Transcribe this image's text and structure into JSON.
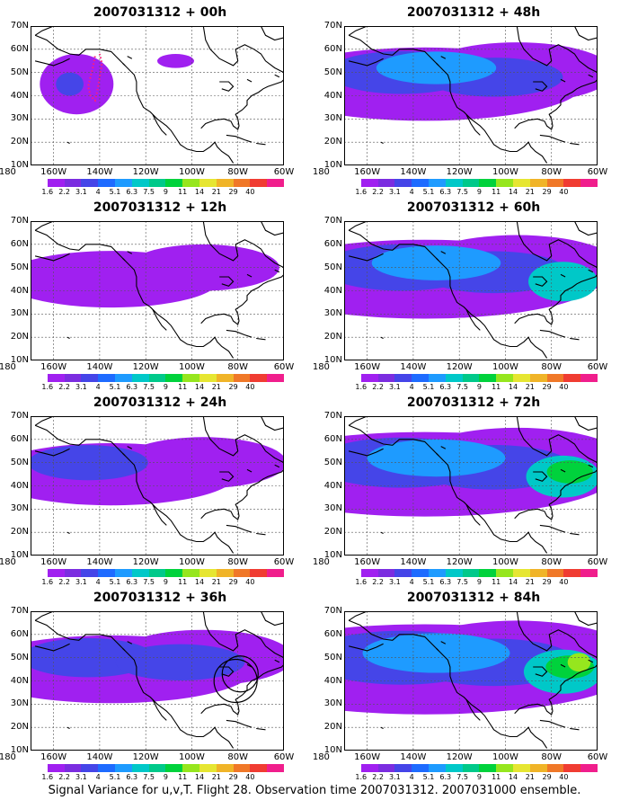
{
  "panels": [
    {
      "title": "2007031312 + 00h",
      "level": 0,
      "track": true,
      "circles": false
    },
    {
      "title": "2007031312 + 48h",
      "level": 4,
      "track": false,
      "circles": false
    },
    {
      "title": "2007031312 + 12h",
      "level": 1,
      "track": false,
      "circles": false
    },
    {
      "title": "2007031312 + 60h",
      "level": 5,
      "track": false,
      "circles": false
    },
    {
      "title": "2007031312 + 24h",
      "level": 2,
      "track": false,
      "circles": false
    },
    {
      "title": "2007031312 + 72h",
      "level": 6,
      "track": false,
      "circles": false
    },
    {
      "title": "2007031312 + 36h",
      "level": 3,
      "track": false,
      "circles": true
    },
    {
      "title": "2007031312 + 84h",
      "level": 7,
      "track": false,
      "circles": false
    }
  ],
  "lat_labels": [
    "70N",
    "60N",
    "50N",
    "40N",
    "30N",
    "20N",
    "10N"
  ],
  "lon_labels": [
    "180",
    "160W",
    "140W",
    "120W",
    "100W",
    "80W",
    "60W"
  ],
  "colorbar": {
    "labels": [
      "1.6",
      "2.2",
      "3.1",
      "4",
      "5.1",
      "6.3",
      "7.5",
      "9",
      "11",
      "14",
      "21",
      "29",
      "40"
    ],
    "colors": [
      "#ffffff",
      "#a020f0",
      "#7b2de0",
      "#4545e8",
      "#1e6bff",
      "#1e9bff",
      "#00c8c8",
      "#00c98a",
      "#00d23c",
      "#96e61e",
      "#e6e632",
      "#f0b428",
      "#f07828",
      "#f03c32",
      "#f01e8c"
    ]
  },
  "caption": "Signal Variance for u,v,T. Flight 28. Observation time 2007031312. 2007031000 ensemble."
}
